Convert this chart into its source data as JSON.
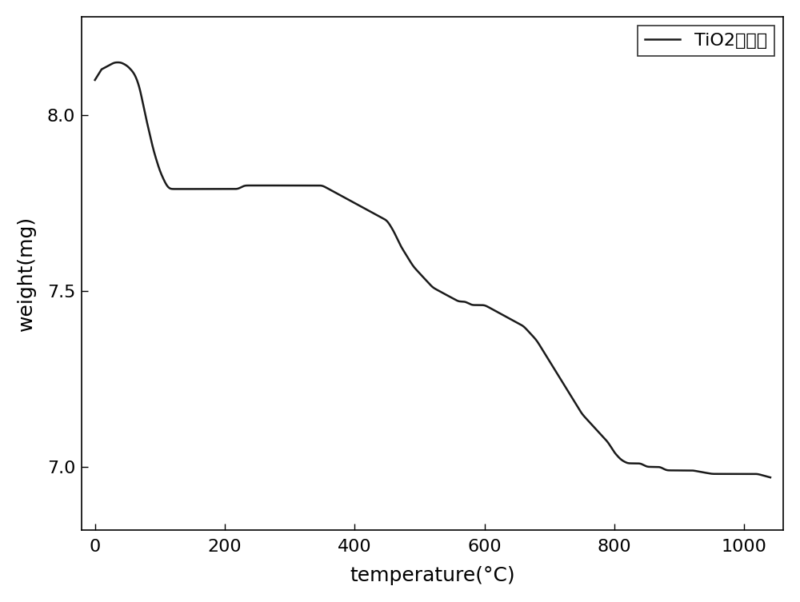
{
  "xlabel": "temperature(°C)",
  "ylabel": "weight(mg)",
  "legend_label": "TiO2前驱体",
  "xlim": [
    -20,
    1060
  ],
  "ylim": [
    6.82,
    8.28
  ],
  "xticks": [
    0,
    200,
    400,
    600,
    800,
    1000
  ],
  "yticks": [
    7.0,
    7.5,
    8.0
  ],
  "line_color": "#1a1a1a",
  "line_width": 1.8,
  "background_color": "#ffffff",
  "xlabel_fontsize": 18,
  "ylabel_fontsize": 18,
  "tick_fontsize": 16,
  "legend_fontsize": 16,
  "curve_x": [
    0,
    10,
    20,
    30,
    40,
    50,
    60,
    65,
    70,
    75,
    80,
    85,
    90,
    95,
    100,
    105,
    110,
    115,
    120,
    125,
    130,
    140,
    150,
    160,
    170,
    180,
    190,
    200,
    210,
    220,
    230,
    240,
    250,
    260,
    270,
    280,
    290,
    300,
    310,
    320,
    330,
    340,
    350,
    360,
    370,
    380,
    390,
    400,
    410,
    420,
    430,
    440,
    450,
    460,
    470,
    480,
    490,
    500,
    510,
    520,
    530,
    540,
    550,
    560,
    570,
    580,
    590,
    600,
    610,
    620,
    630,
    640,
    650,
    660,
    670,
    680,
    690,
    700,
    710,
    720,
    730,
    740,
    750,
    760,
    770,
    780,
    790,
    800,
    810,
    820,
    830,
    840,
    850,
    860,
    870,
    880,
    900,
    920,
    950,
    980,
    1000,
    1020,
    1040
  ],
  "curve_y": [
    8.1,
    8.13,
    8.14,
    8.15,
    8.15,
    8.14,
    8.12,
    8.1,
    8.07,
    8.02,
    7.98,
    7.94,
    7.9,
    7.87,
    7.84,
    7.82,
    7.8,
    7.79,
    7.79,
    7.79,
    7.79,
    7.79,
    7.79,
    7.79,
    7.79,
    7.79,
    7.79,
    7.79,
    7.79,
    7.79,
    7.8,
    7.8,
    7.8,
    7.8,
    7.8,
    7.8,
    7.8,
    7.8,
    7.8,
    7.8,
    7.8,
    7.8,
    7.8,
    7.79,
    7.78,
    7.77,
    7.76,
    7.75,
    7.74,
    7.73,
    7.72,
    7.71,
    7.7,
    7.67,
    7.63,
    7.6,
    7.57,
    7.55,
    7.53,
    7.51,
    7.5,
    7.49,
    7.48,
    7.47,
    7.47,
    7.46,
    7.46,
    7.46,
    7.45,
    7.44,
    7.43,
    7.42,
    7.41,
    7.4,
    7.38,
    7.36,
    7.33,
    7.3,
    7.27,
    7.24,
    7.21,
    7.18,
    7.15,
    7.13,
    7.11,
    7.09,
    7.07,
    7.04,
    7.02,
    7.01,
    7.01,
    7.01,
    7.0,
    7.0,
    7.0,
    6.99,
    6.99,
    6.99,
    6.98,
    6.98,
    6.98,
    6.98,
    6.97
  ]
}
